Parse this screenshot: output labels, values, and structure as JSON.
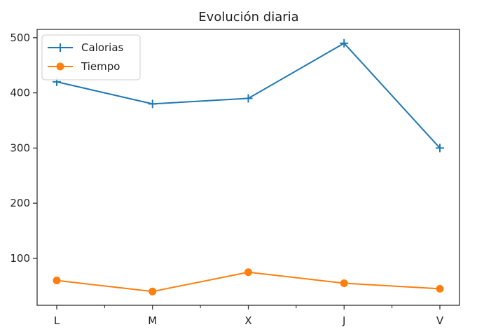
{
  "chart_data": {
    "type": "line",
    "title": "Evolución diaria",
    "xlabel": "",
    "ylabel": "",
    "categories": [
      "L",
      "M",
      "X",
      "J",
      "V"
    ],
    "ylim": [
      15,
      515
    ],
    "y_ticks": [
      100,
      200,
      300,
      400,
      500
    ],
    "grid": false,
    "legend_position": "top-left",
    "series": [
      {
        "name": "Calorias",
        "values": [
          420,
          380,
          390,
          490,
          300
        ],
        "color": "#1f77b4",
        "marker": "plus"
      },
      {
        "name": "Tiempo",
        "values": [
          60,
          40,
          75,
          55,
          45
        ],
        "color": "#ff7f0e",
        "marker": "circle"
      }
    ]
  }
}
